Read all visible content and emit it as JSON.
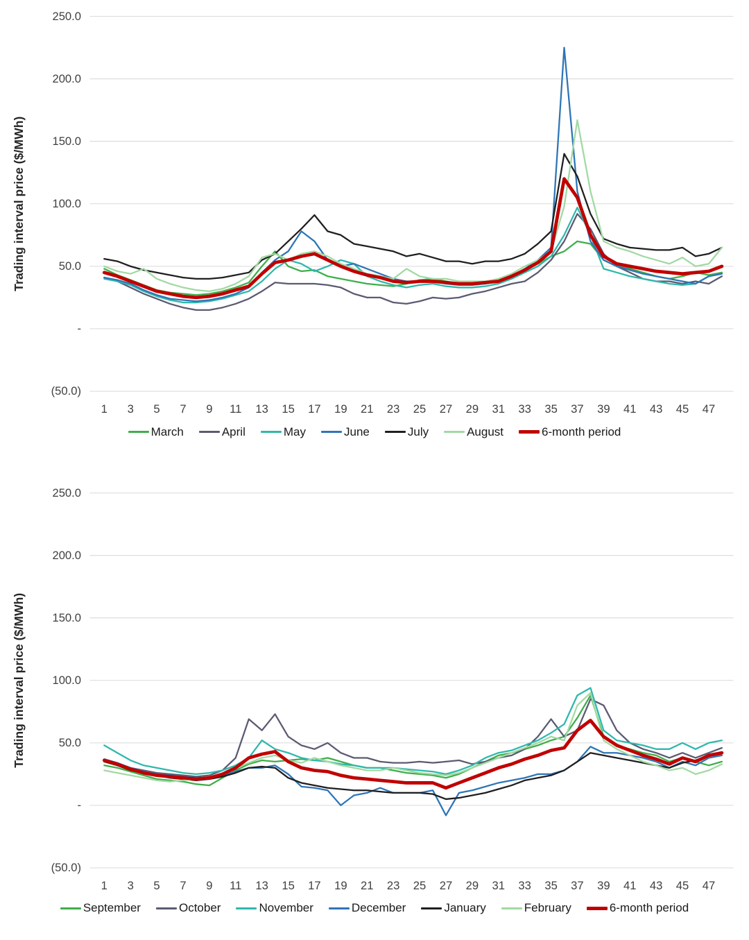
{
  "chart_data": [
    {
      "type": "line",
      "title": "",
      "ylabel": "Trading interval price ($/MWh)",
      "xlabel": "",
      "ylim": [
        -50,
        250
      ],
      "grid": true,
      "grid_color": "#d9d9d9",
      "tick_color": "#404040",
      "legend_position": "bottom",
      "x_count": 48,
      "xticks": [
        1,
        3,
        5,
        7,
        9,
        11,
        13,
        15,
        17,
        19,
        21,
        23,
        25,
        27,
        29,
        31,
        33,
        35,
        37,
        39,
        41,
        43,
        45,
        47
      ],
      "yticks": [
        {
          "value": 250,
          "label": "250.0"
        },
        {
          "value": 200,
          "label": "200.0"
        },
        {
          "value": 150,
          "label": "150.0"
        },
        {
          "value": 100,
          "label": "100.0"
        },
        {
          "value": 50,
          "label": "50.0"
        },
        {
          "value": 0,
          "label": "-"
        },
        {
          "value": -50,
          "label": "(50.0)"
        }
      ],
      "series": [
        {
          "name": "March",
          "color": "#3fae4b",
          "width": 2.2,
          "values": [
            48,
            43,
            39,
            35,
            31,
            29,
            28,
            27,
            28,
            30,
            33,
            37,
            50,
            62,
            50,
            46,
            47,
            42,
            40,
            38,
            36,
            35,
            34,
            36,
            39,
            40,
            38,
            36,
            36,
            36,
            38,
            42,
            47,
            52,
            58,
            62,
            70,
            68,
            55,
            50,
            48,
            45,
            42,
            40,
            42,
            45,
            43,
            45
          ]
        },
        {
          "name": "April",
          "color": "#5b5a72",
          "width": 2.2,
          "values": [
            41,
            38,
            33,
            28,
            24,
            20,
            17,
            15,
            15,
            17,
            20,
            24,
            30,
            37,
            36,
            36,
            36,
            35,
            33,
            28,
            25,
            25,
            21,
            20,
            22,
            25,
            24,
            25,
            28,
            30,
            33,
            36,
            38,
            45,
            55,
            70,
            92,
            80,
            60,
            50,
            45,
            40,
            38,
            38,
            36,
            38,
            36,
            42
          ]
        },
        {
          "name": "May",
          "color": "#2fb8ac",
          "width": 2.2,
          "values": [
            40,
            38,
            35,
            30,
            26,
            23,
            21,
            21,
            22,
            24,
            27,
            30,
            38,
            48,
            55,
            52,
            46,
            50,
            55,
            52,
            42,
            38,
            35,
            33,
            35,
            36,
            34,
            33,
            33,
            34,
            36,
            40,
            45,
            50,
            58,
            75,
            97,
            75,
            48,
            45,
            42,
            40,
            38,
            36,
            35,
            36,
            42,
            44
          ]
        },
        {
          "name": "June",
          "color": "#2e75b6",
          "width": 2.2,
          "values": [
            41,
            39,
            36,
            31,
            27,
            24,
            23,
            22,
            23,
            25,
            28,
            33,
            45,
            55,
            62,
            78,
            70,
            55,
            50,
            52,
            48,
            44,
            40,
            38,
            38,
            38,
            36,
            35,
            35,
            36,
            38,
            42,
            48,
            55,
            65,
            225,
            110,
            70,
            55,
            50,
            47,
            44,
            42,
            40,
            38,
            36,
            42,
            44
          ]
        },
        {
          "name": "July",
          "color": "#1f1f1f",
          "width": 2.2,
          "values": [
            56,
            54,
            50,
            47,
            45,
            43,
            41,
            40,
            40,
            41,
            43,
            45,
            55,
            60,
            70,
            80,
            91,
            78,
            75,
            68,
            66,
            64,
            62,
            58,
            60,
            57,
            54,
            54,
            52,
            54,
            54,
            56,
            60,
            68,
            78,
            140,
            122,
            92,
            72,
            68,
            65,
            64,
            63,
            63,
            65,
            58,
            60,
            65
          ]
        },
        {
          "name": "August",
          "color": "#a2d9a4",
          "width": 2.2,
          "values": [
            50,
            46,
            44,
            48,
            40,
            36,
            33,
            31,
            30,
            32,
            36,
            42,
            57,
            60,
            55,
            60,
            62,
            58,
            52,
            48,
            44,
            42,
            40,
            48,
            42,
            40,
            40,
            38,
            38,
            38,
            40,
            44,
            50,
            55,
            62,
            98,
            167,
            110,
            70,
            65,
            62,
            58,
            55,
            52,
            57,
            50,
            52,
            65
          ]
        },
        {
          "name": "6-month period",
          "color": "#c00000",
          "width": 4.6,
          "values": [
            45,
            42,
            38,
            34,
            30,
            28,
            26,
            25,
            26,
            28,
            31,
            34,
            44,
            53,
            55,
            58,
            60,
            55,
            50,
            46,
            43,
            41,
            38,
            37,
            38,
            38,
            37,
            36,
            36,
            37,
            38,
            42,
            47,
            53,
            62,
            120,
            105,
            75,
            58,
            52,
            50,
            48,
            46,
            45,
            44,
            45,
            46,
            50
          ]
        }
      ]
    },
    {
      "type": "line",
      "title": "",
      "ylabel": "Trading interval price ($/MWh)",
      "xlabel": "",
      "ylim": [
        -50,
        250
      ],
      "grid": true,
      "grid_color": "#d9d9d9",
      "tick_color": "#404040",
      "legend_position": "bottom",
      "x_count": 48,
      "xticks": [
        1,
        3,
        5,
        7,
        9,
        11,
        13,
        15,
        17,
        19,
        21,
        23,
        25,
        27,
        29,
        31,
        33,
        35,
        37,
        39,
        41,
        43,
        45,
        47
      ],
      "yticks": [
        {
          "value": 250,
          "label": "250.0"
        },
        {
          "value": 200,
          "label": "200.0"
        },
        {
          "value": 150,
          "label": "150.0"
        },
        {
          "value": 100,
          "label": "100.0"
        },
        {
          "value": 50,
          "label": "50.0"
        },
        {
          "value": 0,
          "label": "-"
        },
        {
          "value": -50,
          "label": "(50.0)"
        }
      ],
      "series": [
        {
          "name": "September",
          "color": "#3fae4b",
          "width": 2.2,
          "values": [
            32,
            30,
            27,
            24,
            21,
            20,
            19,
            17,
            16,
            22,
            28,
            33,
            36,
            35,
            36,
            37,
            36,
            38,
            35,
            32,
            30,
            30,
            28,
            26,
            25,
            24,
            22,
            25,
            30,
            35,
            40,
            42,
            45,
            48,
            52,
            55,
            70,
            88,
            55,
            48,
            45,
            42,
            40,
            35,
            38,
            35,
            32,
            35
          ]
        },
        {
          "name": "October",
          "color": "#5b5a72",
          "width": 2.2,
          "values": [
            36,
            33,
            30,
            28,
            26,
            25,
            24,
            23,
            24,
            28,
            38,
            69,
            60,
            73,
            55,
            48,
            45,
            50,
            42,
            38,
            38,
            35,
            34,
            34,
            35,
            34,
            35,
            36,
            33,
            35,
            38,
            40,
            45,
            55,
            69,
            55,
            60,
            85,
            80,
            60,
            50,
            45,
            42,
            38,
            42,
            38,
            42,
            46
          ]
        },
        {
          "name": "November",
          "color": "#2fb8ac",
          "width": 2.2,
          "values": [
            48,
            42,
            36,
            32,
            30,
            28,
            26,
            25,
            26,
            28,
            32,
            38,
            52,
            45,
            42,
            38,
            36,
            35,
            33,
            32,
            30,
            30,
            30,
            29,
            28,
            27,
            25,
            28,
            32,
            38,
            42,
            44,
            48,
            52,
            58,
            65,
            88,
            94,
            60,
            52,
            50,
            48,
            45,
            45,
            50,
            45,
            50,
            52
          ]
        },
        {
          "name": "December",
          "color": "#2e75b6",
          "width": 2.2,
          "values": [
            37,
            34,
            30,
            27,
            25,
            24,
            23,
            22,
            22,
            24,
            27,
            30,
            30,
            32,
            25,
            15,
            14,
            12,
            0,
            8,
            10,
            14,
            10,
            10,
            10,
            12,
            -8,
            10,
            12,
            15,
            18,
            20,
            22,
            25,
            25,
            28,
            35,
            47,
            42,
            42,
            40,
            38,
            35,
            30,
            35,
            32,
            38,
            40
          ]
        },
        {
          "name": "January",
          "color": "#1f1f1f",
          "width": 2.2,
          "values": [
            35,
            32,
            28,
            26,
            24,
            22,
            21,
            20,
            21,
            23,
            26,
            30,
            31,
            30,
            22,
            18,
            16,
            14,
            13,
            12,
            12,
            11,
            10,
            10,
            10,
            9,
            5,
            6,
            8,
            10,
            13,
            16,
            20,
            22,
            24,
            28,
            35,
            42,
            40,
            38,
            36,
            34,
            32,
            30,
            34,
            36,
            40,
            42
          ]
        },
        {
          "name": "February",
          "color": "#a2d9a4",
          "width": 2.2,
          "values": [
            28,
            26,
            24,
            22,
            20,
            19,
            20,
            21,
            22,
            25,
            30,
            34,
            38,
            40,
            36,
            34,
            38,
            35,
            32,
            30,
            28,
            28,
            30,
            28,
            26,
            25,
            24,
            26,
            30,
            34,
            38,
            42,
            46,
            50,
            55,
            52,
            80,
            90,
            52,
            45,
            40,
            35,
            32,
            28,
            30,
            25,
            28,
            33
          ]
        },
        {
          "name": "6-month period",
          "color": "#c00000",
          "width": 4.6,
          "values": [
            36,
            33,
            29,
            26,
            24,
            23,
            22,
            21,
            22,
            25,
            30,
            38,
            41,
            43,
            35,
            30,
            28,
            27,
            24,
            22,
            21,
            20,
            19,
            18,
            18,
            18,
            14,
            18,
            22,
            26,
            30,
            33,
            37,
            40,
            44,
            46,
            60,
            68,
            55,
            48,
            44,
            40,
            37,
            33,
            38,
            35,
            40,
            42
          ]
        }
      ]
    }
  ]
}
